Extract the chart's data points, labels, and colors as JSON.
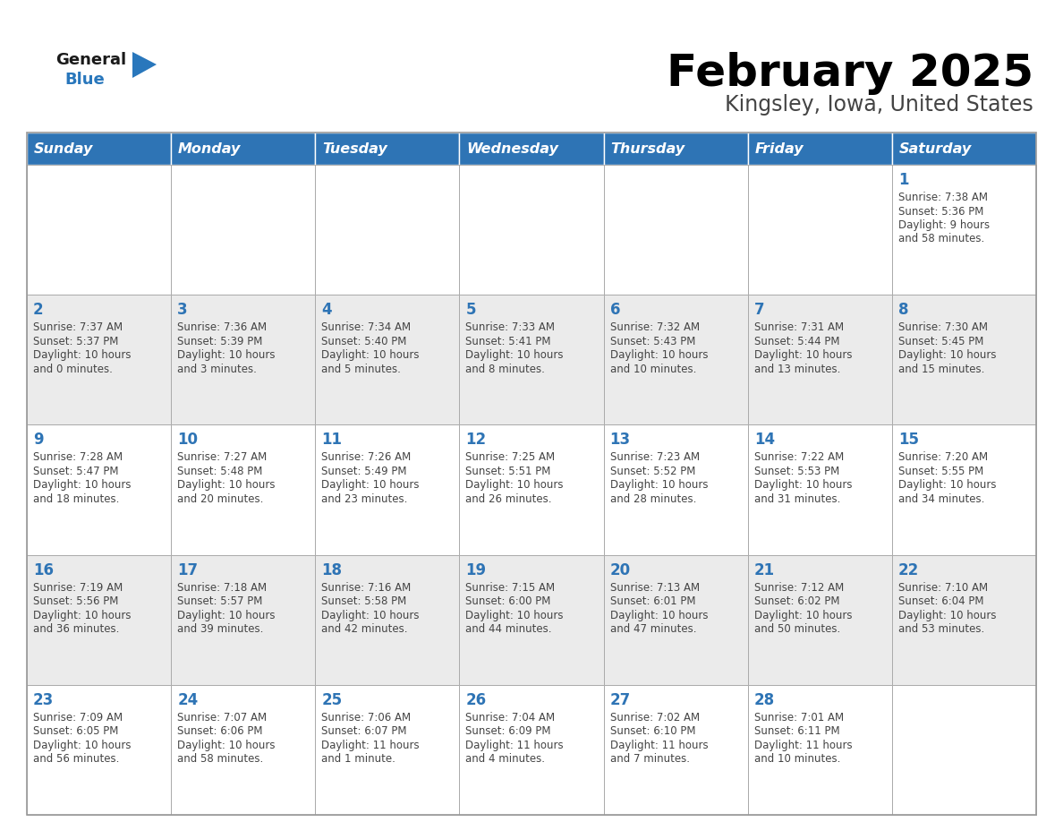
{
  "title": "February 2025",
  "subtitle": "Kingsley, Iowa, United States",
  "days_of_week": [
    "Sunday",
    "Monday",
    "Tuesday",
    "Wednesday",
    "Thursday",
    "Friday",
    "Saturday"
  ],
  "header_bg": "#2E74B5",
  "header_text": "#FFFFFF",
  "row_bg": [
    "#FFFFFF",
    "#EBEBEB",
    "#FFFFFF",
    "#EBEBEB",
    "#FFFFFF"
  ],
  "cell_border": "#AAAAAA",
  "day_num_color": "#2E74B5",
  "info_text_color": "#444444",
  "title_color": "#000000",
  "subtitle_color": "#444444",
  "logo_general_color": "#1a1a1a",
  "logo_blue_color": "#2977BC",
  "calendar_data": [
    [
      {
        "day": null,
        "info": ""
      },
      {
        "day": null,
        "info": ""
      },
      {
        "day": null,
        "info": ""
      },
      {
        "day": null,
        "info": ""
      },
      {
        "day": null,
        "info": ""
      },
      {
        "day": null,
        "info": ""
      },
      {
        "day": 1,
        "info": "Sunrise: 7:38 AM\nSunset: 5:36 PM\nDaylight: 9 hours\nand 58 minutes."
      }
    ],
    [
      {
        "day": 2,
        "info": "Sunrise: 7:37 AM\nSunset: 5:37 PM\nDaylight: 10 hours\nand 0 minutes."
      },
      {
        "day": 3,
        "info": "Sunrise: 7:36 AM\nSunset: 5:39 PM\nDaylight: 10 hours\nand 3 minutes."
      },
      {
        "day": 4,
        "info": "Sunrise: 7:34 AM\nSunset: 5:40 PM\nDaylight: 10 hours\nand 5 minutes."
      },
      {
        "day": 5,
        "info": "Sunrise: 7:33 AM\nSunset: 5:41 PM\nDaylight: 10 hours\nand 8 minutes."
      },
      {
        "day": 6,
        "info": "Sunrise: 7:32 AM\nSunset: 5:43 PM\nDaylight: 10 hours\nand 10 minutes."
      },
      {
        "day": 7,
        "info": "Sunrise: 7:31 AM\nSunset: 5:44 PM\nDaylight: 10 hours\nand 13 minutes."
      },
      {
        "day": 8,
        "info": "Sunrise: 7:30 AM\nSunset: 5:45 PM\nDaylight: 10 hours\nand 15 minutes."
      }
    ],
    [
      {
        "day": 9,
        "info": "Sunrise: 7:28 AM\nSunset: 5:47 PM\nDaylight: 10 hours\nand 18 minutes."
      },
      {
        "day": 10,
        "info": "Sunrise: 7:27 AM\nSunset: 5:48 PM\nDaylight: 10 hours\nand 20 minutes."
      },
      {
        "day": 11,
        "info": "Sunrise: 7:26 AM\nSunset: 5:49 PM\nDaylight: 10 hours\nand 23 minutes."
      },
      {
        "day": 12,
        "info": "Sunrise: 7:25 AM\nSunset: 5:51 PM\nDaylight: 10 hours\nand 26 minutes."
      },
      {
        "day": 13,
        "info": "Sunrise: 7:23 AM\nSunset: 5:52 PM\nDaylight: 10 hours\nand 28 minutes."
      },
      {
        "day": 14,
        "info": "Sunrise: 7:22 AM\nSunset: 5:53 PM\nDaylight: 10 hours\nand 31 minutes."
      },
      {
        "day": 15,
        "info": "Sunrise: 7:20 AM\nSunset: 5:55 PM\nDaylight: 10 hours\nand 34 minutes."
      }
    ],
    [
      {
        "day": 16,
        "info": "Sunrise: 7:19 AM\nSunset: 5:56 PM\nDaylight: 10 hours\nand 36 minutes."
      },
      {
        "day": 17,
        "info": "Sunrise: 7:18 AM\nSunset: 5:57 PM\nDaylight: 10 hours\nand 39 minutes."
      },
      {
        "day": 18,
        "info": "Sunrise: 7:16 AM\nSunset: 5:58 PM\nDaylight: 10 hours\nand 42 minutes."
      },
      {
        "day": 19,
        "info": "Sunrise: 7:15 AM\nSunset: 6:00 PM\nDaylight: 10 hours\nand 44 minutes."
      },
      {
        "day": 20,
        "info": "Sunrise: 7:13 AM\nSunset: 6:01 PM\nDaylight: 10 hours\nand 47 minutes."
      },
      {
        "day": 21,
        "info": "Sunrise: 7:12 AM\nSunset: 6:02 PM\nDaylight: 10 hours\nand 50 minutes."
      },
      {
        "day": 22,
        "info": "Sunrise: 7:10 AM\nSunset: 6:04 PM\nDaylight: 10 hours\nand 53 minutes."
      }
    ],
    [
      {
        "day": 23,
        "info": "Sunrise: 7:09 AM\nSunset: 6:05 PM\nDaylight: 10 hours\nand 56 minutes."
      },
      {
        "day": 24,
        "info": "Sunrise: 7:07 AM\nSunset: 6:06 PM\nDaylight: 10 hours\nand 58 minutes."
      },
      {
        "day": 25,
        "info": "Sunrise: 7:06 AM\nSunset: 6:07 PM\nDaylight: 11 hours\nand 1 minute."
      },
      {
        "day": 26,
        "info": "Sunrise: 7:04 AM\nSunset: 6:09 PM\nDaylight: 11 hours\nand 4 minutes."
      },
      {
        "day": 27,
        "info": "Sunrise: 7:02 AM\nSunset: 6:10 PM\nDaylight: 11 hours\nand 7 minutes."
      },
      {
        "day": 28,
        "info": "Sunrise: 7:01 AM\nSunset: 6:11 PM\nDaylight: 11 hours\nand 10 minutes."
      },
      {
        "day": null,
        "info": ""
      }
    ]
  ]
}
